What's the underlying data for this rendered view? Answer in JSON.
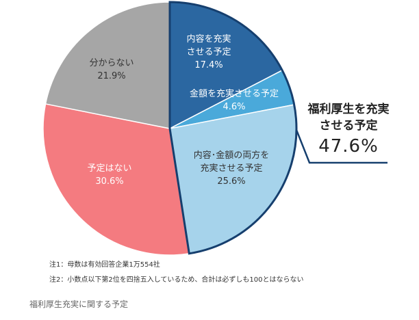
{
  "chart_data": {
    "type": "pie",
    "slices": [
      {
        "label": "内容を充実させる予定",
        "label_lines": [
          "内容を充実",
          "させる予定"
        ],
        "value": 17.4,
        "display": "17.4%",
        "color": "#2b67a1",
        "text_color": "#ffffff"
      },
      {
        "label": "金額を充実させる予定",
        "label_lines": [
          "金額を充実させる予定"
        ],
        "value": 4.6,
        "display": "4.6%",
        "color": "#4aa9da",
        "text_color": "#ffffff"
      },
      {
        "label": "内容・金額の両方を充実させる予定",
        "label_lines": [
          "内容･金額の両方を",
          "充実させる予定"
        ],
        "value": 25.6,
        "display": "25.6%",
        "color": "#a6d3eb",
        "text_color": "#333333"
      },
      {
        "label": "予定はない",
        "label_lines": [
          "予定はない"
        ],
        "value": 30.6,
        "display": "30.6%",
        "color": "#f47b80",
        "text_color": "#ffffff"
      },
      {
        "label": "分からない",
        "label_lines": [
          "分からない"
        ],
        "value": 21.9,
        "display": "21.9%",
        "color": "#a6a6a6",
        "text_color": "#333333"
      }
    ],
    "start": "12 o'clock, clockwise",
    "group_highlight": {
      "label_lines": [
        "福利厚生を充実",
        "させる予定"
      ],
      "value": 47.6,
      "display": "47.6%",
      "outline_color": "#163f6e"
    }
  },
  "notes": [
    "注1：母数は有効回答企業1万554社",
    "注2：小数点以下第2位を四捨五入しているため、合計は必ずしも100とはならない"
  ],
  "caption": "福利厚生充実に関する予定"
}
